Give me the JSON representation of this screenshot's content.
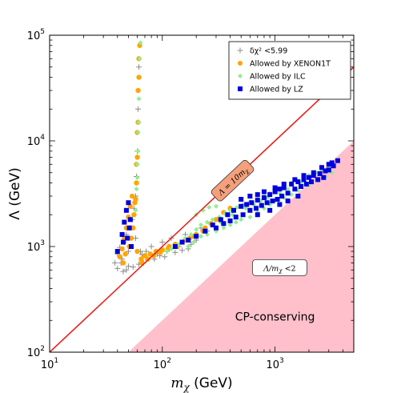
{
  "chart_data": {
    "type": "scatter",
    "xscale": "log",
    "yscale": "log",
    "xlim": [
      10,
      5000
    ],
    "ylim": [
      100,
      100000
    ],
    "xlabel_var": "m",
    "xlabel_sub": "χ",
    "xlabel_unit": " (GeV)",
    "ylabel": "Λ (GeV)",
    "xticks": [
      {
        "base": "10",
        "exp": "1",
        "value": 10
      },
      {
        "base": "10",
        "exp": "2",
        "value": 100
      },
      {
        "base": "10",
        "exp": "3",
        "value": 1000
      }
    ],
    "yticks": [
      {
        "base": "10",
        "exp": "2",
        "value": 100
      },
      {
        "base": "10",
        "exp": "3",
        "value": 1000
      },
      {
        "base": "10",
        "exp": "4",
        "value": 10000
      },
      {
        "base": "10",
        "exp": "5",
        "value": 100000
      }
    ],
    "legend": {
      "position": "top-right",
      "entries": [
        {
          "label": "δχ² <5.99",
          "marker": "plus",
          "color": "#8c8c8c"
        },
        {
          "label": "Allowed by XENON1T",
          "marker": "circle",
          "color": "#ffa500"
        },
        {
          "label": "Allowed by ILC",
          "marker": "diamond",
          "color": "#90ee90"
        },
        {
          "label": "Allowed by LZ",
          "marker": "square",
          "color": "#0000dd"
        }
      ]
    },
    "line": {
      "label": "Λ = 10m",
      "label_sub": "χ",
      "color": "#e8211d",
      "label_box_color": "#f4a07c",
      "points": [
        [
          10,
          100
        ],
        [
          5000,
          50000
        ]
      ]
    },
    "excluded_region": {
      "label": "Λ/m",
      "label_sub": "χ",
      "label_tail": " <2",
      "color": "#ffc0cb",
      "boundary": [
        [
          50,
          100
        ],
        [
          5000,
          10000
        ]
      ]
    },
    "region_label": "CP-conserving",
    "series": [
      {
        "marker": "plus",
        "color": "#8c8c8c",
        "points": [
          [
            38,
            700
          ],
          [
            40,
            850
          ],
          [
            42,
            980
          ],
          [
            44,
            760
          ],
          [
            46,
            1100
          ],
          [
            48,
            1300
          ],
          [
            50,
            650
          ],
          [
            52,
            1500
          ],
          [
            54,
            1800
          ],
          [
            56,
            2300
          ],
          [
            58,
            3000
          ],
          [
            59,
            4600
          ],
          [
            60,
            8000
          ],
          [
            61,
            20000
          ],
          [
            62,
            50000
          ],
          [
            64,
            900
          ],
          [
            68,
            700
          ],
          [
            72,
            900
          ],
          [
            80,
            1000
          ],
          [
            90,
            850
          ],
          [
            100,
            1100
          ],
          [
            110,
            900
          ],
          [
            120,
            1200
          ],
          [
            140,
            1000
          ],
          [
            160,
            1300
          ],
          [
            180,
            1050
          ],
          [
            220,
            1500
          ],
          [
            45,
            580
          ],
          [
            48,
            600
          ],
          [
            55,
            640
          ],
          [
            62,
            680
          ],
          [
            75,
            760
          ],
          [
            95,
            820
          ],
          [
            130,
            880
          ],
          [
            170,
            950
          ],
          [
            40,
            620
          ],
          [
            43,
            700
          ],
          [
            50,
            900
          ],
          [
            58,
            1200
          ],
          [
            66,
            840
          ],
          [
            85,
            760
          ],
          [
            105,
            800
          ],
          [
            150,
            920
          ],
          [
            200,
            1150
          ],
          [
            250,
            1400
          ]
        ]
      },
      {
        "marker": "circle",
        "color": "#ffa500",
        "points": [
          [
            42,
            800
          ],
          [
            44,
            950
          ],
          [
            46,
            1200
          ],
          [
            48,
            1500
          ],
          [
            50,
            1900
          ],
          [
            52,
            2400
          ],
          [
            54,
            3000
          ],
          [
            56,
            2000
          ],
          [
            58,
            2800
          ],
          [
            59,
            4000
          ],
          [
            60,
            7000
          ],
          [
            61,
            15000
          ],
          [
            62,
            40000
          ],
          [
            63,
            80000
          ],
          [
            62,
            60000
          ],
          [
            61,
            30000
          ],
          [
            60,
            12000
          ],
          [
            59,
            6000
          ],
          [
            57,
            2600
          ],
          [
            55,
            1500
          ],
          [
            53,
            1200
          ],
          [
            51,
            1000
          ],
          [
            47,
            850
          ],
          [
            45,
            700
          ],
          [
            65,
            760
          ],
          [
            70,
            820
          ],
          [
            78,
            850
          ],
          [
            88,
            900
          ],
          [
            100,
            930
          ],
          [
            115,
            1000
          ],
          [
            130,
            1050
          ],
          [
            150,
            1100
          ],
          [
            175,
            1200
          ],
          [
            200,
            1300
          ],
          [
            240,
            1500
          ],
          [
            60,
            900
          ],
          [
            66,
            700
          ],
          [
            74,
            760
          ],
          [
            84,
            820
          ],
          [
            96,
            880
          ],
          [
            112,
            950
          ],
          [
            135,
            1000
          ],
          [
            160,
            1150
          ],
          [
            190,
            1250
          ],
          [
            230,
            1400
          ],
          [
            270,
            1650
          ],
          [
            300,
            1800
          ],
          [
            350,
            2100
          ],
          [
            400,
            2300
          ]
        ]
      },
      {
        "marker": "diamond",
        "color": "#90ee90",
        "points": [
          [
            58,
            2200
          ],
          [
            59,
            3500
          ],
          [
            60,
            6000
          ],
          [
            61,
            12000
          ],
          [
            62,
            25000
          ],
          [
            63,
            60000
          ],
          [
            64,
            85000
          ],
          [
            62,
            15000
          ],
          [
            61,
            8000
          ],
          [
            60,
            4500
          ],
          [
            110,
            900
          ],
          [
            120,
            950
          ],
          [
            140,
            1050
          ],
          [
            160,
            1200
          ],
          [
            180,
            1300
          ],
          [
            200,
            1450
          ],
          [
            220,
            1600
          ],
          [
            250,
            1700
          ],
          [
            280,
            1800
          ],
          [
            320,
            1900
          ],
          [
            360,
            2050
          ],
          [
            400,
            2200
          ],
          [
            460,
            2350
          ],
          [
            520,
            2500
          ],
          [
            600,
            2650
          ],
          [
            700,
            2800
          ],
          [
            800,
            3000
          ],
          [
            900,
            3200
          ],
          [
            1000,
            3400
          ],
          [
            1200,
            3700
          ],
          [
            1400,
            4000
          ],
          [
            1600,
            4200
          ],
          [
            1800,
            4400
          ],
          [
            2000,
            4700
          ],
          [
            2300,
            5000
          ],
          [
            2600,
            5300
          ],
          [
            3000,
            5600
          ],
          [
            250,
            1300
          ],
          [
            300,
            1400
          ],
          [
            350,
            1500
          ],
          [
            400,
            1600
          ],
          [
            450,
            1700
          ],
          [
            500,
            1800
          ],
          [
            600,
            1900
          ],
          [
            700,
            2100
          ],
          [
            800,
            2300
          ],
          [
            900,
            2500
          ],
          [
            1000,
            2700
          ],
          [
            1200,
            2900
          ],
          [
            1400,
            3100
          ],
          [
            1600,
            3400
          ],
          [
            2000,
            3800
          ],
          [
            2400,
            4200
          ],
          [
            2800,
            4600
          ],
          [
            3200,
            5000
          ],
          [
            170,
            1000
          ],
          [
            190,
            1100
          ],
          [
            220,
            1250
          ],
          [
            330,
            1700
          ],
          [
            420,
            2000
          ],
          [
            550,
            2300
          ],
          [
            650,
            2500
          ],
          [
            750,
            2700
          ],
          [
            860,
            2900
          ],
          [
            1100,
            3200
          ],
          [
            1300,
            3500
          ],
          [
            1700,
            4000
          ],
          [
            200,
            2000
          ],
          [
            230,
            2200
          ],
          [
            260,
            2350
          ],
          [
            300,
            2400
          ]
        ]
      },
      {
        "marker": "square",
        "color": "#0000dd",
        "points": [
          [
            40,
            900
          ],
          [
            44,
            1300
          ],
          [
            46,
            1700
          ],
          [
            48,
            2200
          ],
          [
            50,
            2600
          ],
          [
            52,
            1800
          ],
          [
            49,
            1200
          ],
          [
            53,
            1000
          ],
          [
            45,
            1100
          ],
          [
            51,
            1500
          ],
          [
            130,
            1000
          ],
          [
            150,
            1100
          ],
          [
            170,
            1150
          ],
          [
            200,
            1250
          ],
          [
            240,
            1400
          ],
          [
            280,
            1600
          ],
          [
            330,
            1800
          ],
          [
            380,
            2000
          ],
          [
            430,
            2200
          ],
          [
            500,
            2400
          ],
          [
            560,
            2500
          ],
          [
            620,
            2600
          ],
          [
            700,
            2750
          ],
          [
            800,
            2900
          ],
          [
            900,
            3100
          ],
          [
            1000,
            3300
          ],
          [
            1100,
            3500
          ],
          [
            1200,
            3600
          ],
          [
            1400,
            3900
          ],
          [
            1600,
            4100
          ],
          [
            1800,
            4300
          ],
          [
            2000,
            4500
          ],
          [
            2200,
            4700
          ],
          [
            2500,
            4900
          ],
          [
            2800,
            5200
          ],
          [
            3000,
            5300
          ],
          [
            300,
            1500
          ],
          [
            350,
            1650
          ],
          [
            400,
            1750
          ],
          [
            450,
            1900
          ],
          [
            520,
            2000
          ],
          [
            600,
            2200
          ],
          [
            680,
            2300
          ],
          [
            760,
            2450
          ],
          [
            850,
            2600
          ],
          [
            950,
            2700
          ],
          [
            1050,
            2800
          ],
          [
            1150,
            3000
          ],
          [
            1300,
            3200
          ],
          [
            1500,
            3500
          ],
          [
            1700,
            3700
          ],
          [
            1900,
            3900
          ],
          [
            2100,
            4100
          ],
          [
            2400,
            4300
          ],
          [
            2700,
            4500
          ],
          [
            500,
            2800
          ],
          [
            600,
            3000
          ],
          [
            700,
            3100
          ],
          [
            800,
            3300
          ],
          [
            1000,
            3600
          ],
          [
            1200,
            3900
          ],
          [
            1500,
            4300
          ],
          [
            1800,
            4700
          ],
          [
            2200,
            5000
          ],
          [
            2600,
            5600
          ],
          [
            3200,
            6200
          ],
          [
            3600,
            6500
          ],
          [
            3300,
            5800
          ],
          [
            3000,
            6000
          ],
          [
            700,
            2000
          ],
          [
            900,
            2200
          ],
          [
            1100,
            2500
          ],
          [
            1300,
            2700
          ],
          [
            1600,
            3000
          ]
        ]
      }
    ]
  }
}
